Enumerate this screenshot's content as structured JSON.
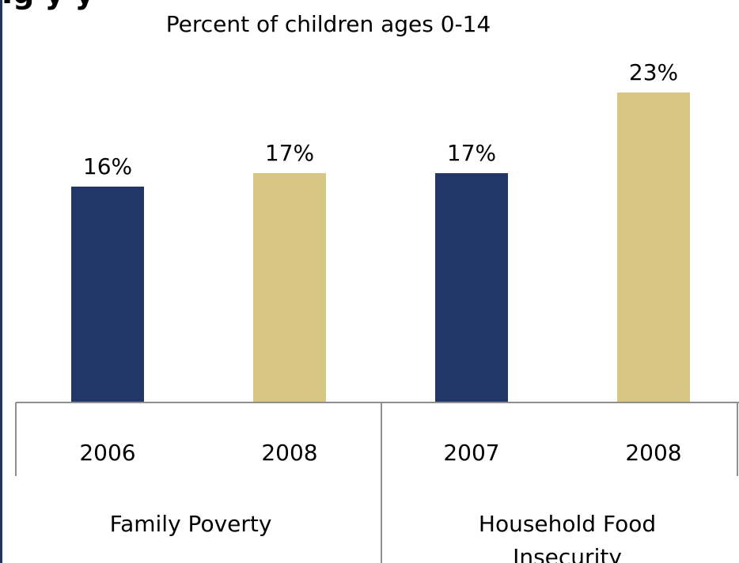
{
  "partial_title": "Ig                    y                       y",
  "colors": {
    "series_2006_2007": "#223668",
    "series_2008": "#d8c685",
    "grid": "#8f8f8f",
    "border": "#1f3566"
  },
  "chart_data": {
    "type": "bar",
    "title": "",
    "subtitle": "Percent of children ages 0-14",
    "xlabel": "",
    "ylabel": "",
    "ylim": [
      0,
      26
    ],
    "grid": false,
    "groups": [
      "Family Poverty",
      "Household Food Insecurity"
    ],
    "categories": [
      "2006",
      "2008",
      "2007",
      "2008"
    ],
    "values": [
      16,
      17,
      17,
      23
    ],
    "data_labels": [
      "16%",
      "17%",
      "17%",
      "23%"
    ],
    "bar_colors": [
      "#223668",
      "#d8c685",
      "#223668",
      "#d8c685"
    ],
    "group_label_lines": [
      [
        "Family Poverty"
      ],
      [
        "Household Food",
        "Insecurity"
      ]
    ]
  }
}
